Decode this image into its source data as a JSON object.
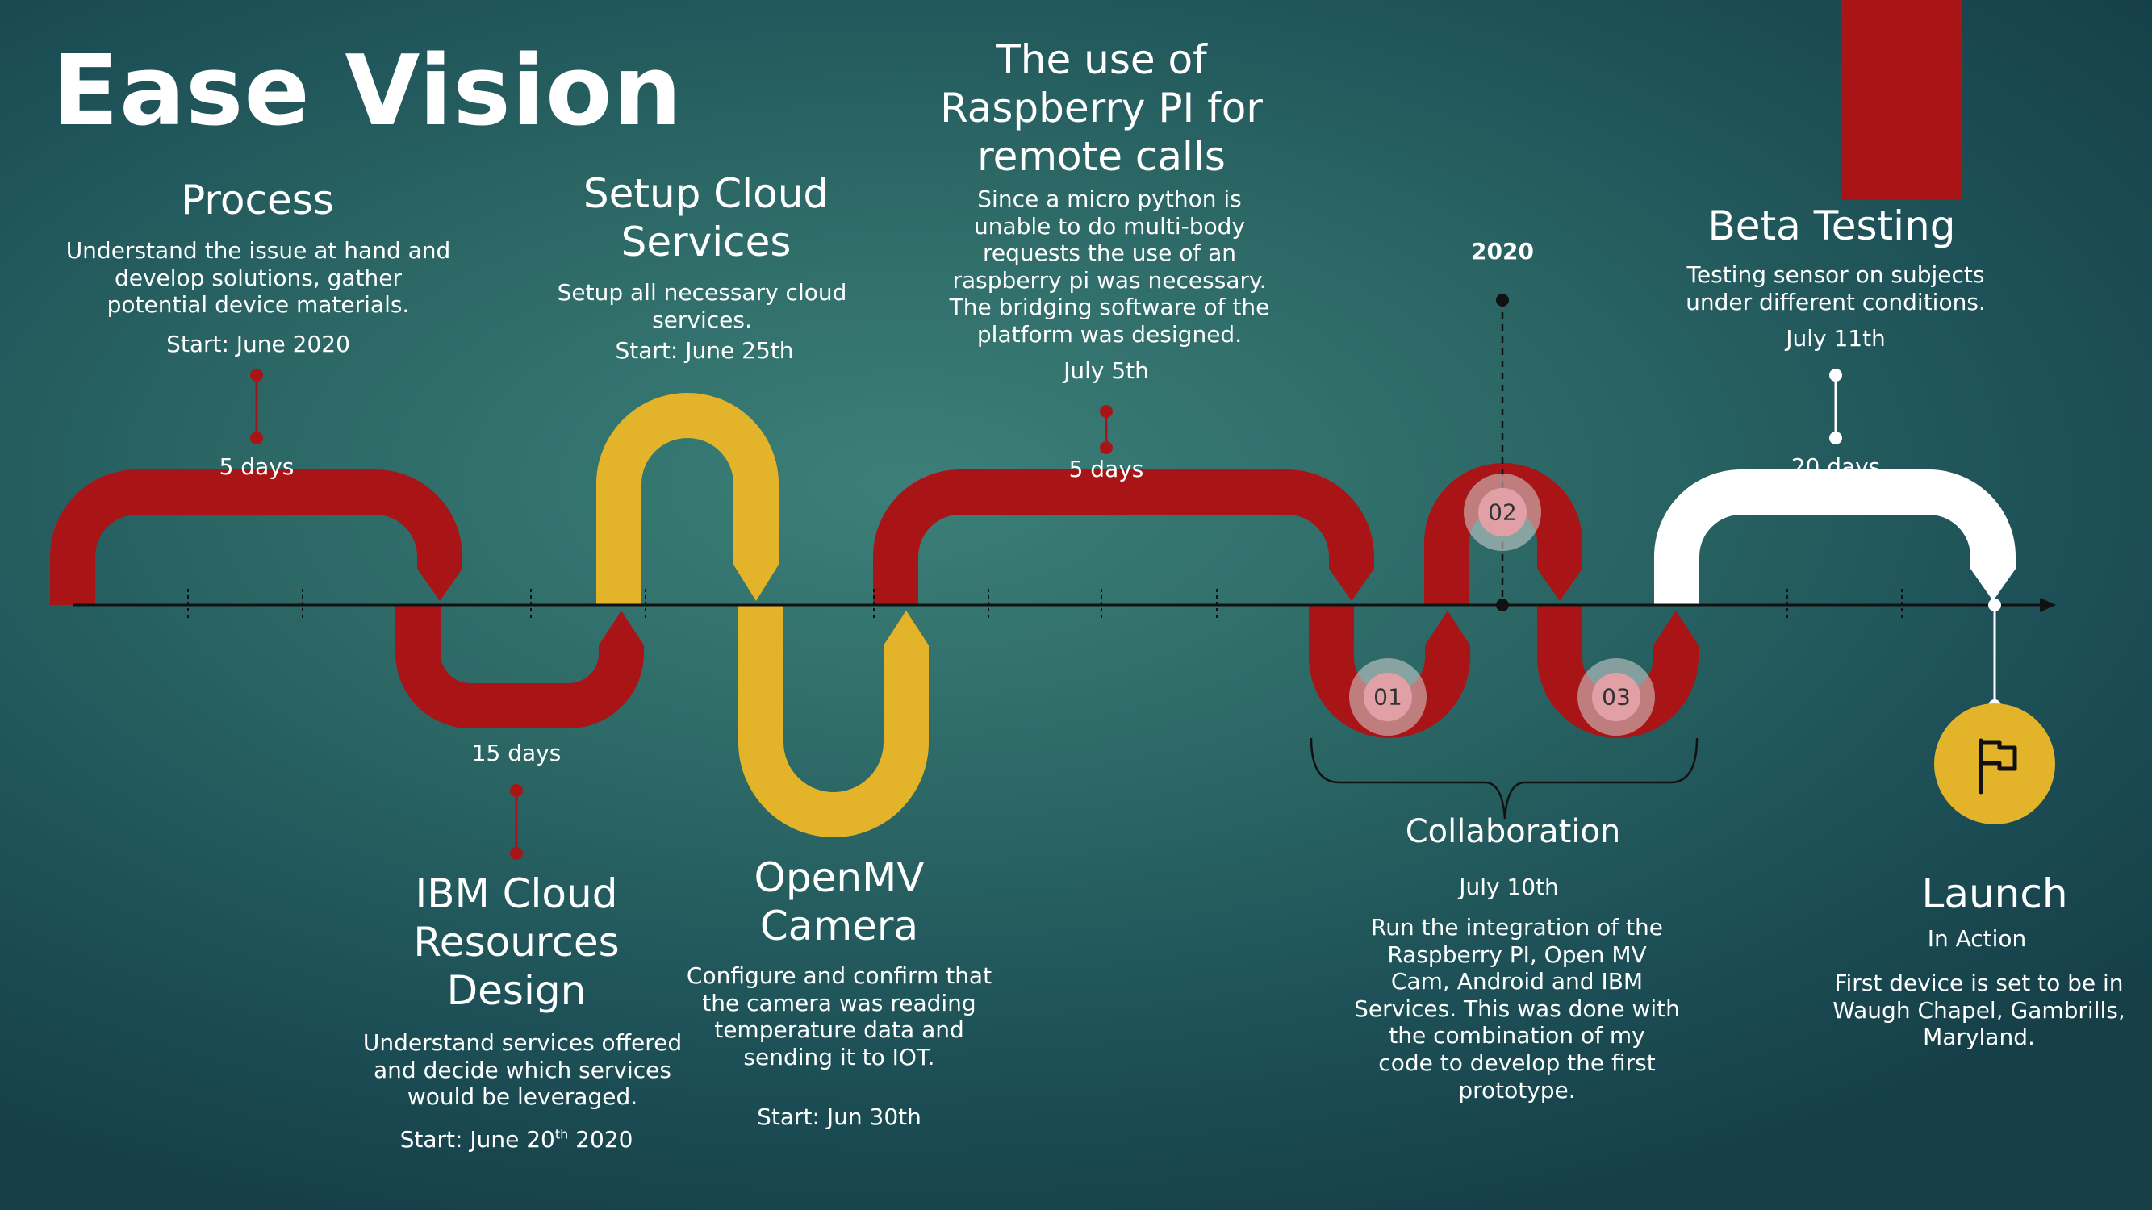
{
  "title": "Ease Vision",
  "colors": {
    "red": "#a91516",
    "yellow": "#e3b42a",
    "white": "#ffffff",
    "axis": "#111111",
    "bubble": "#e0a0a6"
  },
  "year_marker": "2020",
  "milestones": {
    "process": {
      "title": "Process",
      "description": "Understand the issue at hand and\ndevelop solutions, gather\npotential device materials.",
      "date": "Start: June 2020",
      "duration": "5 days"
    },
    "ibm_cloud": {
      "title": "IBM Cloud\nResources\nDesign",
      "description": "Understand services offered\nand decide which services\nwould be leveraged.",
      "date_prefix": "Start: June 20",
      "date_sup": "th",
      "date_suffix": " 2020",
      "duration": "15 days"
    },
    "setup_cloud": {
      "title": "Setup Cloud\nServices",
      "description": "Setup all necessary cloud\nservices.",
      "date": "Start: June 25th"
    },
    "openmv": {
      "title": "OpenMV\nCamera",
      "description": "Configure and confirm that\nthe camera was reading\ntemperature data and\nsending it to IOT.",
      "date": "Start: Jun 30th"
    },
    "raspberry": {
      "title": "The use of\nRaspberry PI for\nremote calls",
      "description": "Since a micro python is\nunable to do multi-body\nrequests the use of an\nraspberry pi was necessary.\nThe bridging software of the\nplatform was designed.",
      "date": "July 5th",
      "duration": "5 days"
    },
    "collaboration": {
      "title": "Collaboration",
      "date": "July 10th",
      "description": "Run the integration of the\nRaspberry PI, Open MV\nCam, Android and IBM\nServices. This was done with\nthe combination of my\ncode to develop the first\nprototype.",
      "steps": [
        "01",
        "02",
        "03"
      ]
    },
    "beta": {
      "title": "Beta Testing",
      "description": "Testing sensor on subjects\nunder different conditions.",
      "date": "July 11th",
      "duration": "20 days"
    },
    "launch": {
      "title": "Launch",
      "subtitle": "In Action",
      "description": "First device is set to be in\nWaugh Chapel, Gambrills,\nMaryland.",
      "icon": "flag-icon"
    }
  }
}
